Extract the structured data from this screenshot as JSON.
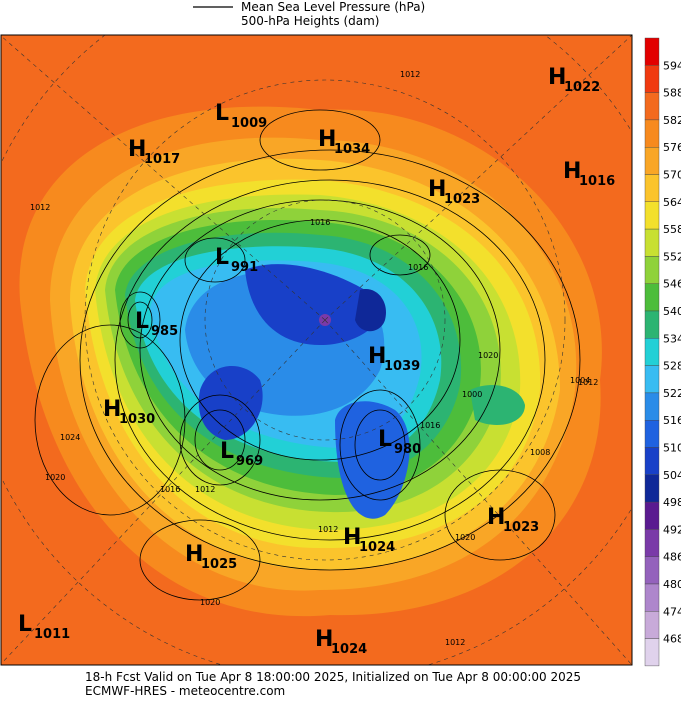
{
  "legend": {
    "line_label": "Mean Sea Level Pressure (hPa)",
    "fill_label": "500-hPa Heights (dam)"
  },
  "colorbar": {
    "ticks": [
      594,
      588,
      582,
      576,
      570,
      564,
      558,
      552,
      546,
      540,
      534,
      528,
      522,
      516,
      510,
      504,
      498,
      492,
      486,
      480,
      474,
      468
    ],
    "colors": [
      "#e20000",
      "#f03a10",
      "#f36a1e",
      "#f78a1e",
      "#f9a626",
      "#fbc42c",
      "#f3e02c",
      "#c8e032",
      "#8fd23a",
      "#4dbd3b",
      "#2cb472",
      "#22d0d6",
      "#38bcf2",
      "#2a8ce8",
      "#1f62e0",
      "#1840c8",
      "#0f2898",
      "#5a1a90",
      "#7a3aa8",
      "#9462bc",
      "#ae86cc",
      "#c8aad9",
      "#e0d2ec"
    ]
  },
  "pressure_centers": [
    {
      "kind": "H",
      "value": 1022
    },
    {
      "kind": "H",
      "value": 1016
    },
    {
      "kind": "L",
      "value": 1009
    },
    {
      "kind": "H",
      "value": 1034
    },
    {
      "kind": "H",
      "value": 1017
    },
    {
      "kind": "H",
      "value": 1023
    },
    {
      "kind": "L",
      "value": 991
    },
    {
      "kind": "L",
      "value": 985
    },
    {
      "kind": "H",
      "value": 1039
    },
    {
      "kind": "H",
      "value": 1030
    },
    {
      "kind": "L",
      "value": 969
    },
    {
      "kind": "L",
      "value": 980
    },
    {
      "kind": "H",
      "value": 1023
    },
    {
      "kind": "H",
      "value": 1025
    },
    {
      "kind": "H",
      "value": 1024
    },
    {
      "kind": "L",
      "value": 1011
    },
    {
      "kind": "H",
      "value": 1024
    }
  ],
  "isobar_labels": [
    1012,
    1012,
    1016,
    1016,
    1012,
    1020,
    1024,
    1020,
    1016,
    1012,
    1020,
    1004,
    1000,
    1016,
    1008,
    1012,
    1020,
    1012
  ],
  "footer": {
    "line1": "18-h Fcst Valid on Tue Apr  8 18:00:00 2025, Initialized on Tue Apr  8 00:00:00 2025",
    "line2": "ECMWF-HRES  - meteocentre.com"
  }
}
